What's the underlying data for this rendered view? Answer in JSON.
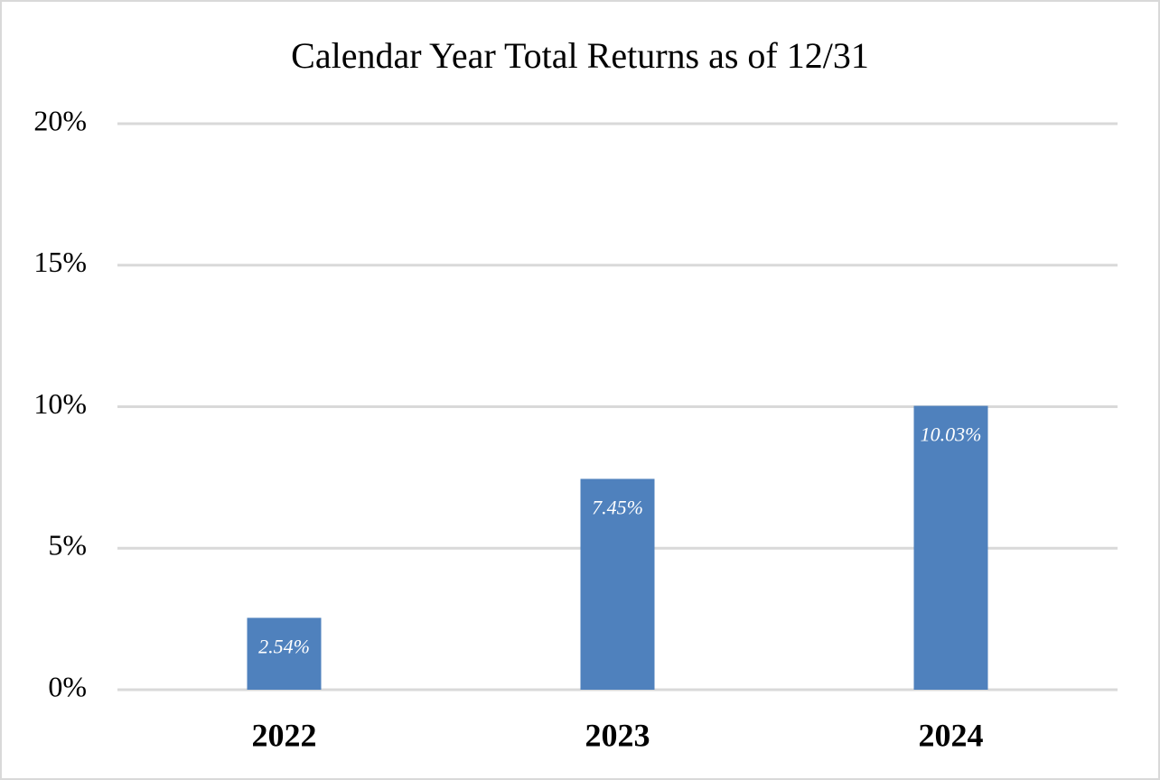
{
  "chart_data": {
    "type": "bar",
    "title": "Calendar Year Total Returns as of 12/31",
    "categories": [
      "2022",
      "2023",
      "2024"
    ],
    "values": [
      2.54,
      7.45,
      10.03
    ],
    "value_labels": [
      "2.54%",
      "7.45%",
      "10.03%"
    ],
    "color": "#4f81bd",
    "ylim": [
      0,
      20
    ],
    "yticks": [
      {
        "value": 0,
        "label": "0%"
      },
      {
        "value": 5,
        "label": "5%"
      },
      {
        "value": 10,
        "label": "10%"
      },
      {
        "value": 15,
        "label": "15%"
      },
      {
        "value": 20,
        "label": "20%"
      }
    ],
    "grid": true
  }
}
